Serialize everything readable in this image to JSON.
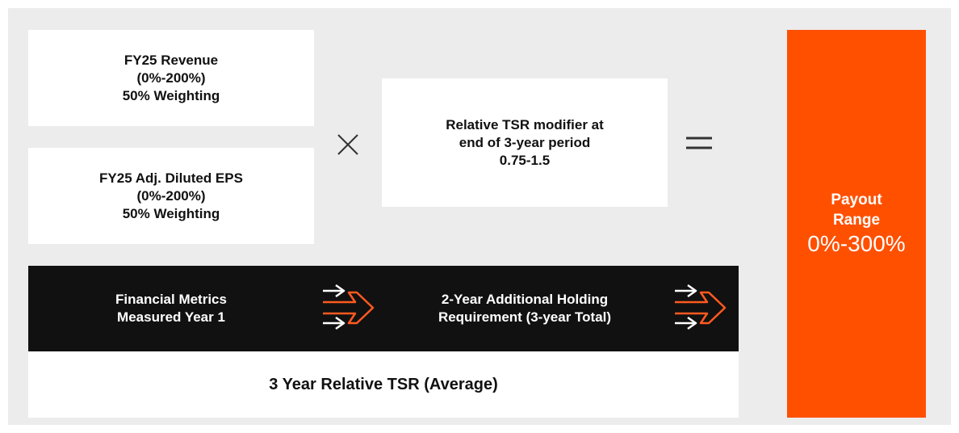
{
  "revenue_box": {
    "lines": [
      "FY25 Revenue",
      "(0%-200%)",
      "50% Weighting"
    ]
  },
  "eps_box": {
    "lines": [
      "FY25 Adj. Diluted EPS",
      "(0%-200%)",
      "50% Weighting"
    ]
  },
  "tsr_modifier_box": {
    "lines": [
      "Relative TSR modifier at",
      "end of 3-year period",
      "0.75-1.5"
    ]
  },
  "payout_box": {
    "title_lines": [
      "Payout",
      "Range"
    ],
    "range": "0%-300%"
  },
  "timeline": {
    "step_1": [
      "Financial Metrics",
      "Measured Year 1"
    ],
    "step_2": [
      "2-Year Additional Holding",
      "Requirement (3-year Total)"
    ]
  },
  "footer": {
    "label": "3 Year Relative TSR (Average)"
  }
}
